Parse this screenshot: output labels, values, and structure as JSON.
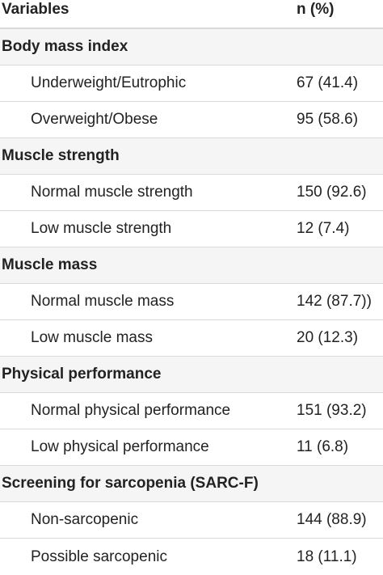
{
  "table": {
    "header": {
      "variable": "Variables",
      "n": "n (%)"
    },
    "sections": [
      {
        "title": "Body mass index",
        "rows": [
          {
            "label": "Underweight/Eutrophic",
            "value": "67 (41.4)"
          },
          {
            "label": "Overweight/Obese",
            "value": "95 (58.6)"
          }
        ]
      },
      {
        "title": "Muscle strength",
        "rows": [
          {
            "label": "Normal muscle strength",
            "value": "150 (92.6)"
          },
          {
            "label": "Low muscle strength",
            "value": "12 (7.4)"
          }
        ]
      },
      {
        "title": "Muscle mass",
        "rows": [
          {
            "label": "Normal muscle mass",
            "value": "142 (87.7))"
          },
          {
            "label": "Low muscle mass",
            "value": "20 (12.3)"
          }
        ]
      },
      {
        "title": "Physical performance",
        "rows": [
          {
            "label": "Normal physical performance",
            "value": "151 (93.2)"
          },
          {
            "label": "Low physical performance",
            "value": "11 (6.8)"
          }
        ]
      },
      {
        "title": "Screening for sarcopenia (SARC-F)",
        "rows": [
          {
            "label": "Non-sarcopenic",
            "value": "144 (88.9)"
          },
          {
            "label": "Possible sarcopenic",
            "value": "18 (11.1)"
          }
        ]
      }
    ]
  }
}
